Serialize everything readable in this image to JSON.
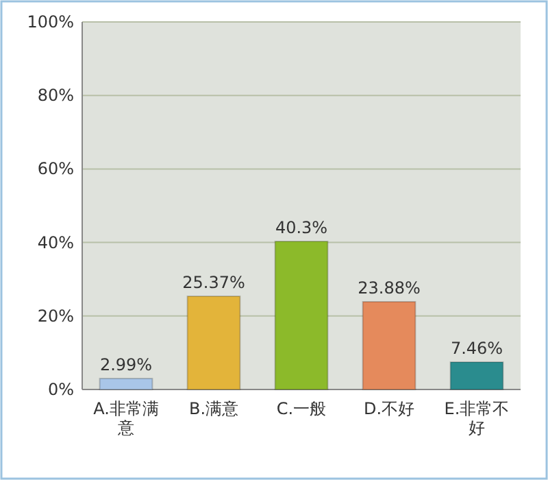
{
  "chart_data": {
    "type": "bar",
    "categories": [
      "A.非常满意",
      "B.满意",
      "C.一般",
      "D.不好",
      "E.非常不好"
    ],
    "values": [
      2.99,
      25.37,
      40.3,
      23.88,
      7.46
    ],
    "colors": [
      "#a9c6e8",
      "#e3b43a",
      "#8cba2a",
      "#e58a5c",
      "#2a8c8e"
    ],
    "value_labels": [
      "2.99%",
      "25.37%",
      "40.3%",
      "23.88%",
      "7.46%"
    ],
    "ylim": [
      0,
      100
    ],
    "yticks": [
      {
        "value": 0,
        "label": "0%"
      },
      {
        "value": 20,
        "label": "20%"
      },
      {
        "value": 40,
        "label": "40%"
      },
      {
        "value": 60,
        "label": "60%"
      },
      {
        "value": 80,
        "label": "80%"
      },
      {
        "value": 100,
        "label": "100%"
      }
    ],
    "grid": "y"
  }
}
